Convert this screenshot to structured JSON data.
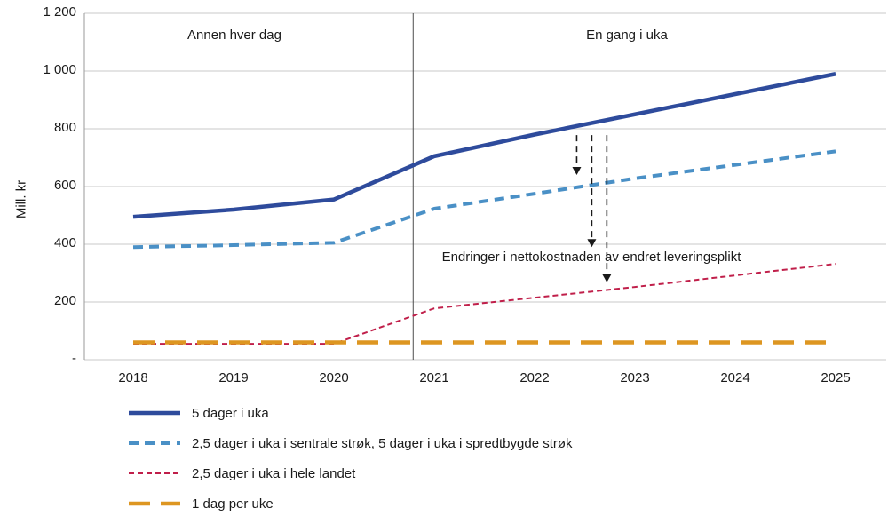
{
  "chart": {
    "ylabel": "Mill. kr",
    "region_left": "Annen hver dag",
    "region_right": "En gang i uka",
    "annotation": "Endringer i nettokostnaden av endret leveringsplikt"
  },
  "chart_data": {
    "type": "line",
    "title": "",
    "ylabel": "Mill. kr",
    "xlabel": "",
    "x": [
      2018,
      2019,
      2020,
      2021,
      2022,
      2023,
      2024,
      2025
    ],
    "ylim": [
      0,
      1200
    ],
    "grid": "horizontal",
    "legend_position": "bottom-left",
    "yticks": [
      {
        "value": 1200,
        "label": "1 200"
      },
      {
        "value": 1000,
        "label": "1 000"
      },
      {
        "value": 800,
        "label": "800"
      },
      {
        "value": 600,
        "label": "600"
      },
      {
        "value": 400,
        "label": "400"
      },
      {
        "value": 200,
        "label": "200"
      },
      {
        "value": 0,
        "label": "-"
      }
    ],
    "divider_x": 2020.79,
    "series": [
      {
        "name": "5 dager i uka",
        "color": "#2e4b9c",
        "width": 4.5,
        "dash": "",
        "values": [
          495,
          520,
          555,
          705,
          780,
          850,
          920,
          990
        ]
      },
      {
        "name": "2,5 dager i uka i sentrale strøk, 5 dager i uka i spredtbygde strøk",
        "color": "#4a90c6",
        "width": 4,
        "dash": "11 7",
        "values": [
          390,
          397,
          405,
          523,
          575,
          628,
          675,
          722
        ]
      },
      {
        "name": "2,5 dager i uka i hele landet",
        "color": "#c01f4a",
        "width": 2,
        "dash": "6 4",
        "values": [
          55,
          55,
          55,
          178,
          215,
          252,
          292,
          332
        ]
      },
      {
        "name": "1 dag per uke",
        "color": "#dd9621",
        "width": 4.5,
        "dash": "24 12",
        "values": [
          60,
          60,
          60,
          60,
          60,
          60,
          60,
          60
        ]
      }
    ],
    "arrows": [
      {
        "x": 2022.42,
        "from": 778,
        "to": 640
      },
      {
        "x": 2022.57,
        "from": 778,
        "to": 390
      },
      {
        "x": 2022.72,
        "from": 778,
        "to": 268
      }
    ]
  }
}
